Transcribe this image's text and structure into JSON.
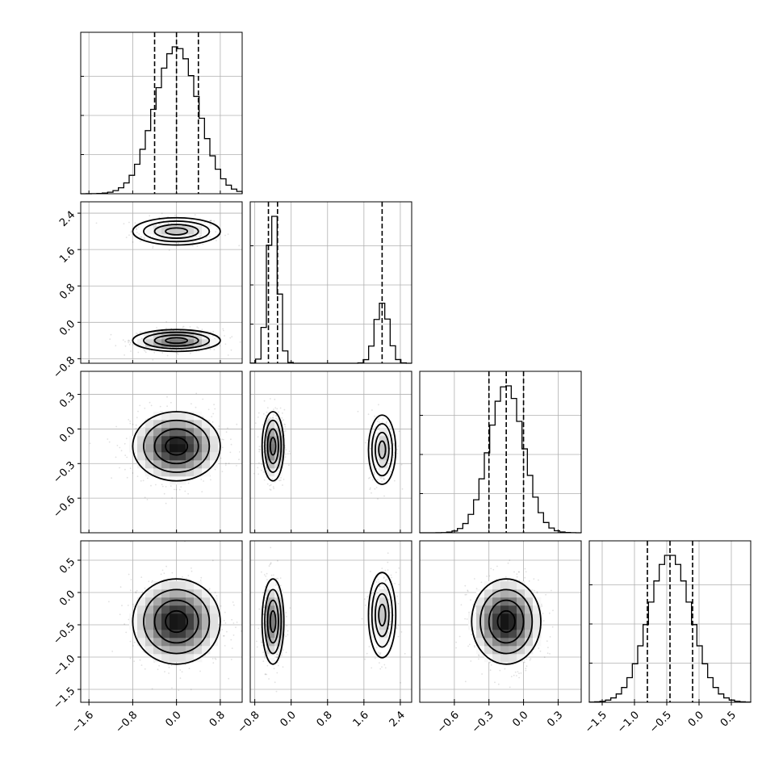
{
  "chart_data": {
    "type": "corner",
    "grid": true,
    "parameters": [
      {
        "index": 0,
        "range": [
          -1.75,
          1.2
        ],
        "ticks": [
          -1.6,
          -0.8,
          0.0,
          0.8
        ],
        "tick_labels": [
          "−1.6",
          "−0.8",
          "0.0",
          "0.8"
        ],
        "marginal": {
          "type": "histogram",
          "quantiles": [
            -0.4,
            0.0,
            0.4
          ],
          "center": 0.0,
          "sd": 0.4
        }
      },
      {
        "index": 1,
        "range": [
          -0.9,
          2.65
        ],
        "ticks": [
          -0.8,
          0.0,
          0.8,
          1.6,
          2.4
        ],
        "tick_labels": [
          "−0.8",
          "0.0",
          "0.8",
          "1.6",
          "2.4"
        ],
        "marginal": {
          "type": "histogram",
          "quantiles": [
            -0.5,
            -0.3,
            2.0
          ],
          "modes": [
            {
              "center": -0.4,
              "sd": 0.12,
              "weight": 0.67
            },
            {
              "center": 2.0,
              "sd": 0.15,
              "weight": 0.33
            }
          ]
        }
      },
      {
        "index": 2,
        "range": [
          -0.9,
          0.5
        ],
        "ticks": [
          -0.6,
          -0.3,
          0.0,
          0.3
        ],
        "tick_labels": [
          "−0.6",
          "−0.3",
          "0.0",
          "0.3"
        ],
        "marginal": {
          "type": "histogram",
          "quantiles": [
            -0.3,
            -0.15,
            0.0
          ],
          "center": -0.15,
          "sd": 0.15
        }
      },
      {
        "index": 3,
        "range": [
          -1.7,
          0.8
        ],
        "ticks": [
          -1.5,
          -1.0,
          -0.5,
          0.0,
          0.5
        ],
        "tick_labels": [
          "−1.5",
          "−1.0",
          "−0.5",
          "0.0",
          "0.5"
        ],
        "marginal": {
          "type": "histogram",
          "quantiles": [
            -0.8,
            -0.45,
            -0.1
          ],
          "center": -0.45,
          "sd": 0.33
        }
      }
    ],
    "pairs": [
      {
        "x": 0,
        "y": 1,
        "blobs": [
          {
            "cx": 0.0,
            "cy": 2.0,
            "sx": 0.4,
            "sy": 0.15,
            "weight": 0.33
          },
          {
            "cx": 0.0,
            "cy": -0.4,
            "sx": 0.4,
            "sy": 0.12,
            "weight": 0.67
          }
        ]
      },
      {
        "x": 0,
        "y": 2,
        "blobs": [
          {
            "cx": 0.0,
            "cy": -0.15,
            "sx": 0.4,
            "sy": 0.15,
            "weight": 1.0
          }
        ]
      },
      {
        "x": 1,
        "y": 2,
        "blobs": [
          {
            "cx": -0.4,
            "cy": -0.15,
            "sx": 0.12,
            "sy": 0.15,
            "weight": 0.67
          },
          {
            "cx": 2.0,
            "cy": -0.18,
            "sx": 0.15,
            "sy": 0.15,
            "weight": 0.33
          }
        ]
      },
      {
        "x": 0,
        "y": 3,
        "blobs": [
          {
            "cx": 0.0,
            "cy": -0.45,
            "sx": 0.4,
            "sy": 0.33,
            "weight": 1.0
          }
        ]
      },
      {
        "x": 1,
        "y": 3,
        "blobs": [
          {
            "cx": -0.4,
            "cy": -0.45,
            "sx": 0.12,
            "sy": 0.33,
            "weight": 0.67
          },
          {
            "cx": 2.0,
            "cy": -0.35,
            "sx": 0.15,
            "sy": 0.33,
            "weight": 0.33
          }
        ]
      },
      {
        "x": 2,
        "y": 3,
        "blobs": [
          {
            "cx": -0.15,
            "cy": -0.45,
            "sx": 0.15,
            "sy": 0.33,
            "weight": 1.0
          }
        ]
      }
    ],
    "contour_levels_sigma": [
      0.5,
      1.0,
      1.5,
      2.0
    ]
  }
}
